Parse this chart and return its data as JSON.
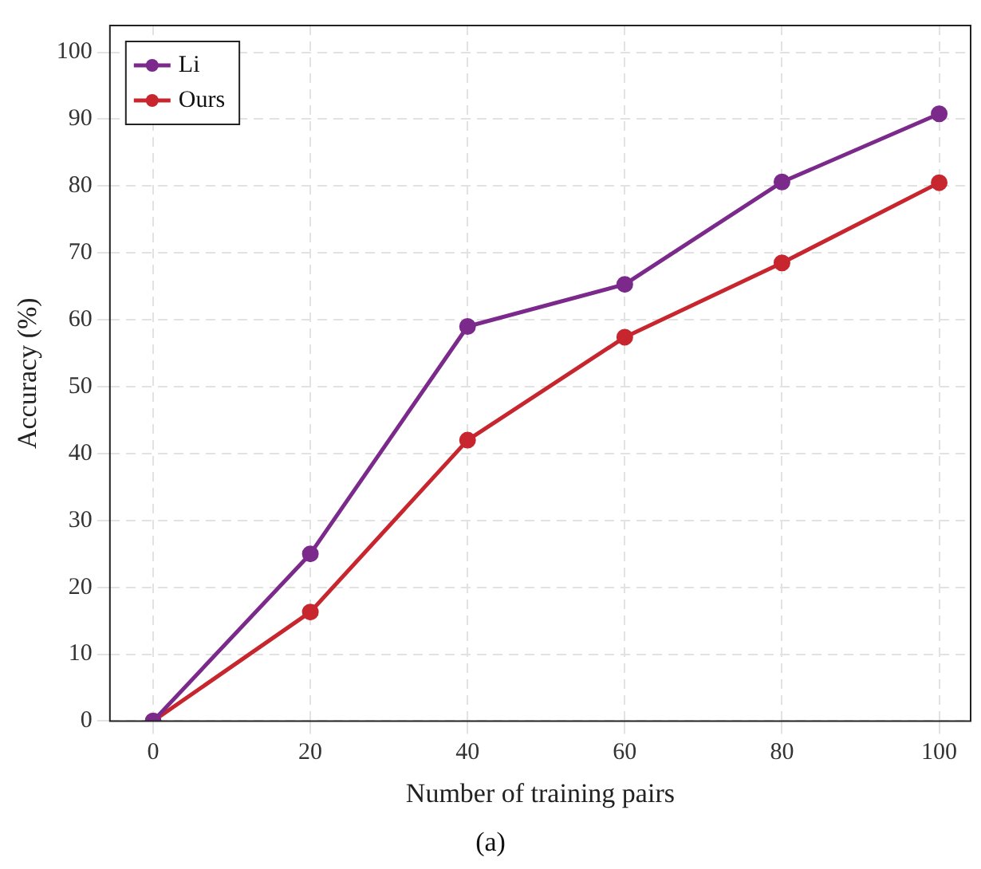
{
  "chart_data": {
    "type": "line",
    "xlabel": "Number of training pairs",
    "ylabel": "Accuracy (%)",
    "title": "(a)",
    "x": [
      0,
      20,
      40,
      60,
      80,
      100
    ],
    "series": [
      {
        "name": "Li",
        "color": "#7b2a8c",
        "values": [
          0,
          25,
          59,
          65.3,
          80.6,
          90.8
        ]
      },
      {
        "name": "Ours",
        "color": "#c8262e",
        "values": [
          0,
          16.3,
          42,
          57.4,
          68.5,
          80.5
        ]
      }
    ],
    "xlim": [
      -5.5,
      104
    ],
    "xticks": [
      0,
      20,
      40,
      60,
      80,
      100
    ],
    "ylim": [
      0,
      104
    ],
    "yticks": [
      0,
      10,
      20,
      30,
      40,
      50,
      60,
      70,
      80,
      90,
      100
    ],
    "grid": true,
    "legend": "top left",
    "marker": "circle",
    "line_style": "solid"
  }
}
